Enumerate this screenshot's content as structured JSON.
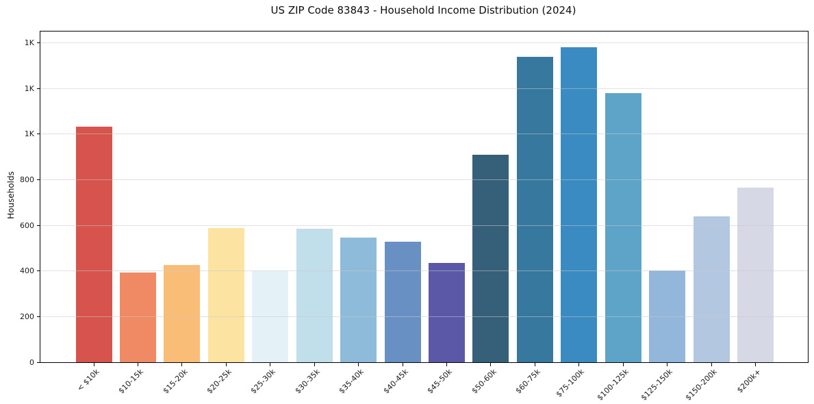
{
  "chart_data": {
    "type": "bar",
    "title": "US ZIP Code 83843 - Household Income Distribution (2024)",
    "xlabel": "",
    "ylabel": "Households",
    "categories": [
      "< $10k",
      "$10-15k",
      "$15-20k",
      "$20-25k",
      "$25-30k",
      "$30-35k",
      "$35-40k",
      "$40-45k",
      "$45-50k",
      "$50-60k",
      "$60-75k",
      "$75-100k",
      "$100-125k",
      "$125-150k",
      "$150-200k",
      "$200k+"
    ],
    "values": [
      1031,
      393,
      426,
      588,
      400,
      585,
      546,
      528,
      435,
      909,
      1338,
      1380,
      1179,
      403,
      639,
      765
    ],
    "bar_colors": [
      "#D6534E",
      "#F08A65",
      "#FABD77",
      "#FDE3A1",
      "#E4F1F7",
      "#C1DEEB",
      "#8FBBDA",
      "#6890C3",
      "#5B58A7",
      "#36607A",
      "#36789E",
      "#398BC2",
      "#5EA4C9",
      "#92B7DA",
      "#B4C7E0",
      "#D6D8E6"
    ],
    "ylim": [
      0,
      1449
    ],
    "yticks": [
      0,
      200,
      400,
      600,
      800,
      1000,
      1200,
      1400
    ],
    "ytick_labels": [
      "0",
      "200",
      "400",
      "600",
      "800",
      "1K",
      "1K",
      "1K"
    ],
    "grid": "horizontal",
    "legend": "none",
    "background_color": "#ffffff",
    "spine_color": "#000000",
    "grid_color": "#e6e6e6",
    "text_color": "#1a1a1a"
  }
}
